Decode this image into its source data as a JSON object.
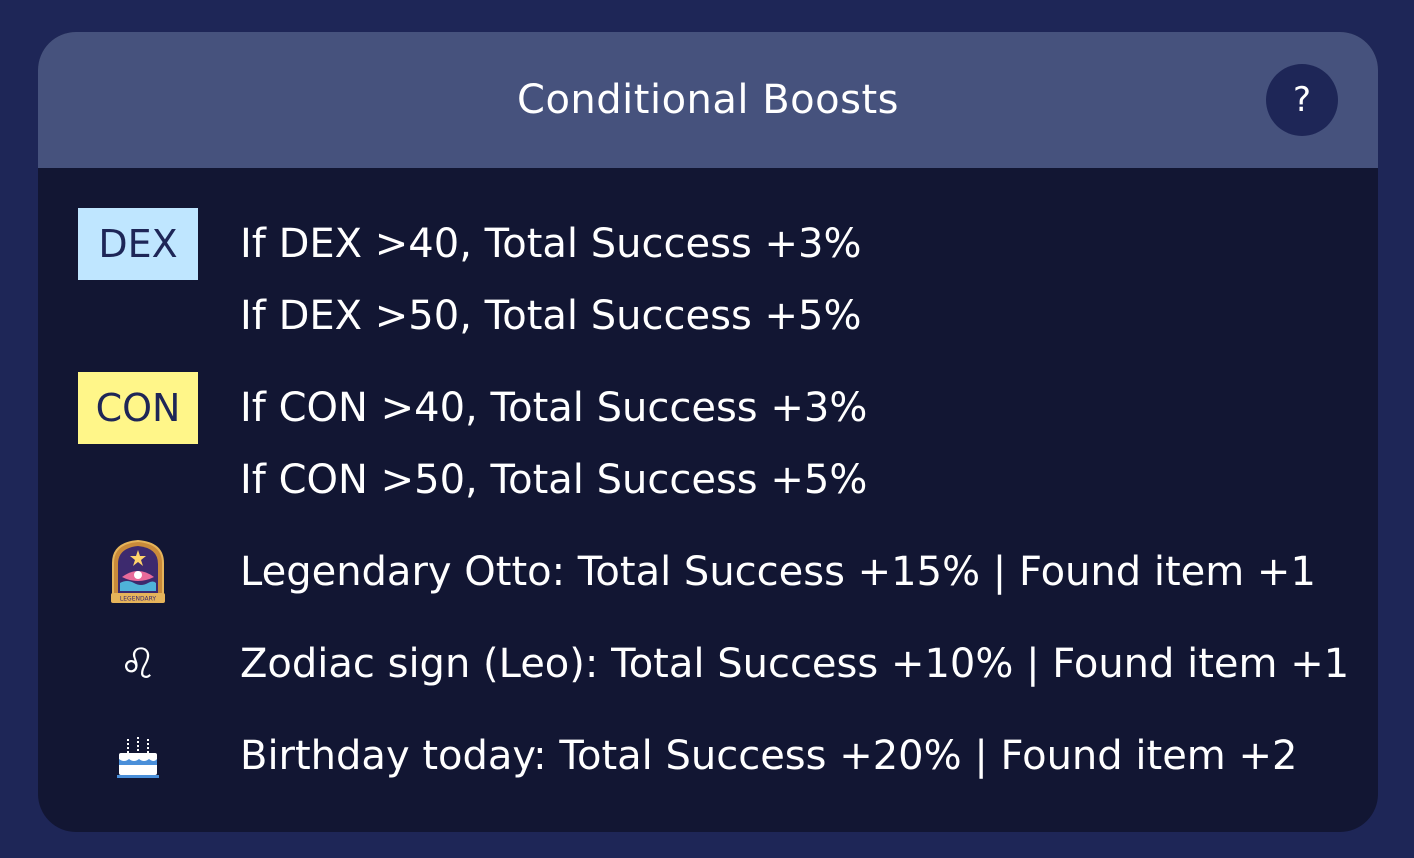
{
  "header": {
    "title": "Conditional Boosts",
    "help_label": "?"
  },
  "colors": {
    "page_bg": "#1e2657",
    "header_bg": "#46527d",
    "body_bg": "#121633",
    "dex_badge": "#bfe6ff",
    "con_badge": "#fff689",
    "text": "#ffffff"
  },
  "boosts": {
    "dex": {
      "badge": "DEX",
      "lines": [
        "If DEX >40, Total Success +3%",
        "If DEX >50, Total Success +5%"
      ]
    },
    "con": {
      "badge": "CON",
      "lines": [
        "If CON >40, Total Success +3%",
        "If CON >50, Total Success +5%"
      ]
    },
    "legendary": {
      "icon": "legendary-badge-icon",
      "badge_text": "LEGENDARY",
      "text": "Legendary Otto: Total Success +15% | Found item +1"
    },
    "zodiac": {
      "icon": "leo-zodiac-icon",
      "glyph": "♌",
      "text": "Zodiac sign (Leo): Total Success +10% | Found item +1"
    },
    "birthday": {
      "icon": "birthday-cake-icon",
      "text": "Birthday today: Total Success +20% | Found item +2"
    }
  }
}
